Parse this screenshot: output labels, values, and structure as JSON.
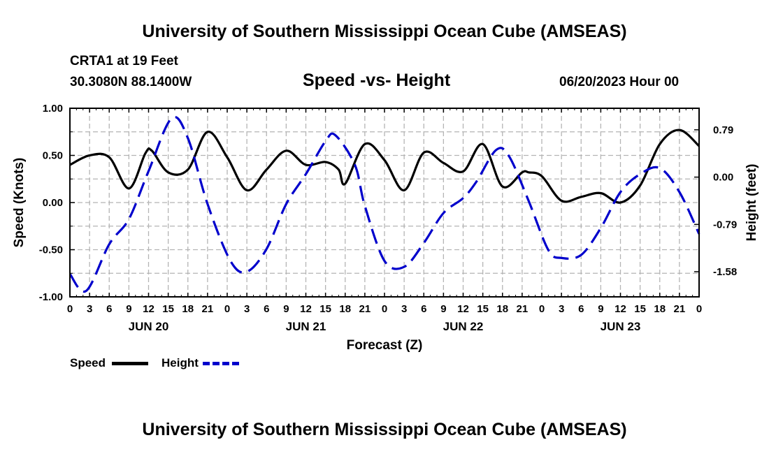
{
  "header": {
    "title": "University of Southern Mississippi Ocean Cube (AMSEAS)",
    "station": "CRTA1 at 19 Feet",
    "location": "30.3080N  88.1400W",
    "subtitle": "Speed -vs- Height",
    "datetime": "06/20/2023 Hour 00"
  },
  "footer": {
    "title": "University of Southern Mississippi Ocean Cube (AMSEAS)"
  },
  "legend": {
    "speed_label": "Speed",
    "height_label": "Height",
    "speed_color": "#000000",
    "height_color": "#0000cc"
  },
  "chart_data": {
    "type": "line",
    "title": "Speed -vs- Height",
    "xlabel": "Forecast (Z)",
    "ylabel": "Speed (Knots)",
    "y2label": "Height (feet)",
    "xlim": [
      0,
      96
    ],
    "ylim": [
      -1.0,
      1.0
    ],
    "y2lim": [
      -2.0,
      1.15
    ],
    "x_tick_hours": [
      0,
      3,
      6,
      9,
      12,
      15,
      18,
      21,
      24,
      27,
      30,
      33,
      36,
      39,
      42,
      45,
      48,
      51,
      54,
      57,
      60,
      63,
      66,
      69,
      72,
      75,
      78,
      81,
      84,
      87,
      90,
      93,
      96
    ],
    "x_tick_labels": [
      "0",
      "3",
      "6",
      "9",
      "12",
      "15",
      "18",
      "21",
      "0",
      "3",
      "6",
      "9",
      "12",
      "15",
      "18",
      "21",
      "0",
      "3",
      "6",
      "9",
      "12",
      "15",
      "18",
      "21",
      "0",
      "3",
      "6",
      "9",
      "12",
      "15",
      "18",
      "21",
      "0"
    ],
    "date_labels": [
      {
        "hour": 12,
        "label": "JUN 20"
      },
      {
        "hour": 36,
        "label": "JUN 21"
      },
      {
        "hour": 60,
        "label": "JUN 22"
      },
      {
        "hour": 84,
        "label": "JUN 23"
      }
    ],
    "y_ticks": [
      1.0,
      0.5,
      0.0,
      -0.5,
      -1.0
    ],
    "y_tick_labels": [
      "1.00",
      "0.50",
      "0.00",
      "-0.50",
      "-1.00"
    ],
    "y2_ticks": [
      0.79,
      0.0,
      -0.79,
      -1.58
    ],
    "y2_tick_labels": [
      "0.79",
      "0.00",
      "-0.79",
      "-1.58"
    ],
    "grid": true,
    "series": [
      {
        "name": "Speed",
        "axis": "left",
        "style": "solid",
        "x": [
          0,
          3,
          6,
          9,
          11.5,
          12.5,
          15,
          18,
          21,
          24,
          27,
          30,
          33,
          36,
          39,
          41,
          42,
          45,
          48,
          51,
          54,
          57,
          60,
          63,
          66,
          69,
          70,
          72,
          75,
          78,
          81,
          84,
          87,
          90,
          93,
          96
        ],
        "values": [
          0.4,
          0.5,
          0.48,
          0.15,
          0.52,
          0.55,
          0.32,
          0.35,
          0.75,
          0.48,
          0.13,
          0.35,
          0.55,
          0.4,
          0.43,
          0.35,
          0.2,
          0.62,
          0.45,
          0.13,
          0.53,
          0.42,
          0.33,
          0.62,
          0.17,
          0.32,
          0.32,
          0.28,
          0.02,
          0.06,
          0.1,
          0.0,
          0.18,
          0.62,
          0.77,
          0.6
        ]
      },
      {
        "name": "Height",
        "axis": "right",
        "style": "dashed",
        "x": [
          0,
          2.5,
          6,
          9,
          12,
          15.5,
          18,
          21,
          24.5,
          27,
          30,
          33,
          36,
          39,
          40.5,
          43.5,
          45,
          48,
          51,
          54,
          57,
          60,
          62,
          65,
          67,
          70,
          73,
          75,
          78,
          81,
          84,
          87,
          90,
          93,
          96
        ],
        "values": [
          -1.62,
          -1.9,
          -1.12,
          -0.7,
          0.1,
          0.98,
          0.65,
          -0.45,
          -1.4,
          -1.58,
          -1.2,
          -0.45,
          0.05,
          0.6,
          0.7,
          0.2,
          -0.48,
          -1.4,
          -1.5,
          -1.1,
          -0.6,
          -0.35,
          -0.08,
          0.45,
          0.35,
          -0.4,
          -1.22,
          -1.35,
          -1.3,
          -0.85,
          -0.25,
          0.05,
          0.15,
          -0.25,
          -0.95
        ]
      }
    ]
  }
}
